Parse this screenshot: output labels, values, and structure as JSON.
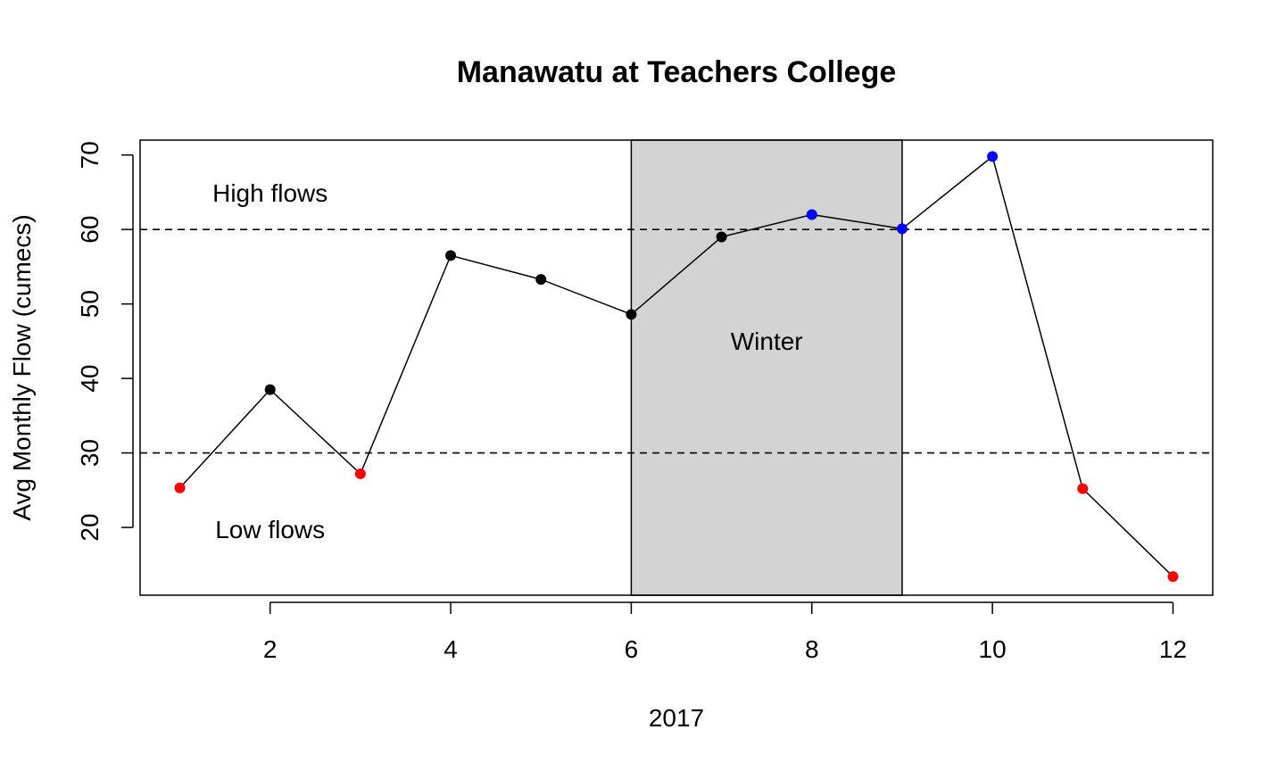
{
  "chart_data": {
    "type": "line",
    "title": "Manawatu at Teachers College",
    "xlabel": "2017",
    "ylabel": "Avg Monthly Flow (cumecs)",
    "x": [
      1,
      2,
      3,
      4,
      5,
      6,
      7,
      8,
      9,
      10,
      11,
      12
    ],
    "values": [
      25.3,
      38.5,
      27.2,
      56.5,
      53.3,
      48.6,
      59.0,
      62.0,
      60.1,
      69.8,
      25.2,
      13.4
    ],
    "point_colors": [
      "#ff0000",
      "#000000",
      "#ff0000",
      "#000000",
      "#000000",
      "#000000",
      "#000000",
      "#0000ff",
      "#0000ff",
      "#0000ff",
      "#ff0000",
      "#ff0000"
    ],
    "xlim": [
      0.56,
      12.44
    ],
    "ylim": [
      10.9,
      72.0
    ],
    "xticks": [
      2,
      4,
      6,
      8,
      10,
      12
    ],
    "yticks": [
      20,
      30,
      40,
      50,
      60,
      70
    ],
    "hlines": [
      30,
      60
    ],
    "shaded_region": {
      "from": 6,
      "to": 9,
      "color": "#d3d3d3",
      "label": "Winter"
    },
    "annotations": [
      {
        "text": "High flows",
        "x": 2.0,
        "y": 64.9
      },
      {
        "text": "Low flows",
        "x": 2.0,
        "y": 19.7
      },
      {
        "text": "Winter",
        "x": 7.5,
        "y": 45.0
      }
    ],
    "grid": false,
    "legend": "none",
    "line_color": "#000000"
  }
}
